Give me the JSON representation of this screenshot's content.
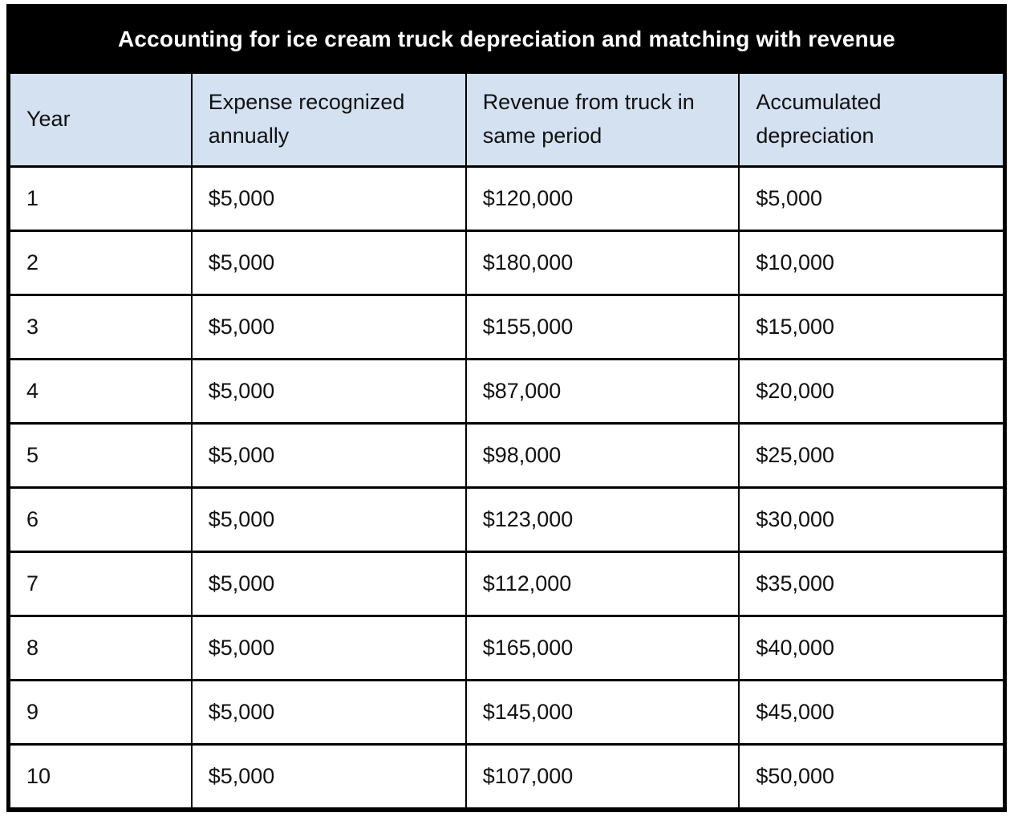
{
  "title": "Accounting for ice cream truck depreciation and matching with revenue",
  "table": {
    "columns": [
      "Year",
      "Expense recognized annually",
      "Revenue from truck in same period",
      "Accumulated depreciation"
    ],
    "rows": [
      [
        "1",
        "$5,000",
        "$120,000",
        "$5,000"
      ],
      [
        "2",
        "$5,000",
        "$180,000",
        "$10,000"
      ],
      [
        "3",
        "$5,000",
        "$155,000",
        "$15,000"
      ],
      [
        "4",
        "$5,000",
        "$87,000",
        "$20,000"
      ],
      [
        "5",
        "$5,000",
        "$98,000",
        "$25,000"
      ],
      [
        "6",
        "$5,000",
        "$123,000",
        "$30,000"
      ],
      [
        "7",
        "$5,000",
        "$112,000",
        "$35,000"
      ],
      [
        "8",
        "$5,000",
        "$165,000",
        "$40,000"
      ],
      [
        "9",
        "$5,000",
        "$145,000",
        "$45,000"
      ],
      [
        "10",
        "$5,000",
        "$107,000",
        "$50,000"
      ]
    ]
  },
  "colors": {
    "title_background": "#000000",
    "title_text": "#ffffff",
    "header_background": "#d3e1f1",
    "grid_border": "#000000",
    "row_background": "#ffffff",
    "cell_text": "#111111"
  }
}
